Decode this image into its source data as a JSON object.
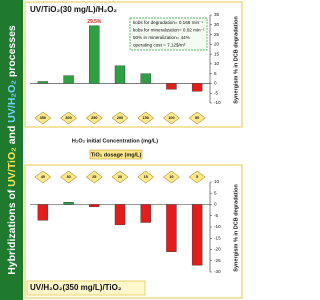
{
  "side_title": [
    "Hybridizations of ",
    "UV/TiO₂",
    " and ",
    "UV/H₂O₂",
    " processes"
  ],
  "chart_data": [
    {
      "type": "bar",
      "title": "UV/TiO₂(30 mg/L)/H₂O₂",
      "xlabel": "H₂O₂ initial  Concentration (mg/L)",
      "ylabel": "Synergism % in DCB degradation",
      "categories": [
        "350",
        "300",
        "250",
        "200",
        "150",
        "100",
        "50"
      ],
      "values": [
        1,
        4,
        29.5,
        9,
        5,
        -3,
        -4
      ],
      "value_labels": [
        null,
        null,
        "29.5%",
        null,
        null,
        null,
        null
      ],
      "positive_color": "#2ea043",
      "negative_color": "#e51c1c",
      "ylim": [
        -10,
        35
      ],
      "yticks": [
        -10,
        -5,
        0,
        5,
        10,
        15,
        20,
        25,
        30,
        35
      ],
      "annotation": [
        "kobs for degradation= 0.166 min⁻¹",
        "kobs for mineralization= 0.02 min⁻¹",
        "50% in mineralization= 44%",
        "operating cost = 7.12$/m³"
      ]
    },
    {
      "type": "bar",
      "title": "UV/H₂O₂(350 mg/L)/TiO₂",
      "xlabel": "TiO₂ dosage (mg/L)",
      "ylabel": "Synergism % in DCB degradation",
      "categories": [
        "40",
        "30",
        "25",
        "20",
        "15",
        "10",
        "5"
      ],
      "values": [
        -7,
        1,
        -1,
        -9,
        -8,
        -21,
        -27
      ],
      "positive_color": "#2ea043",
      "negative_color": "#e51c1c",
      "ylim": [
        -30,
        10
      ],
      "yticks": [
        -30,
        -25,
        -20,
        -15,
        -10,
        -5,
        0,
        5,
        10
      ]
    }
  ]
}
